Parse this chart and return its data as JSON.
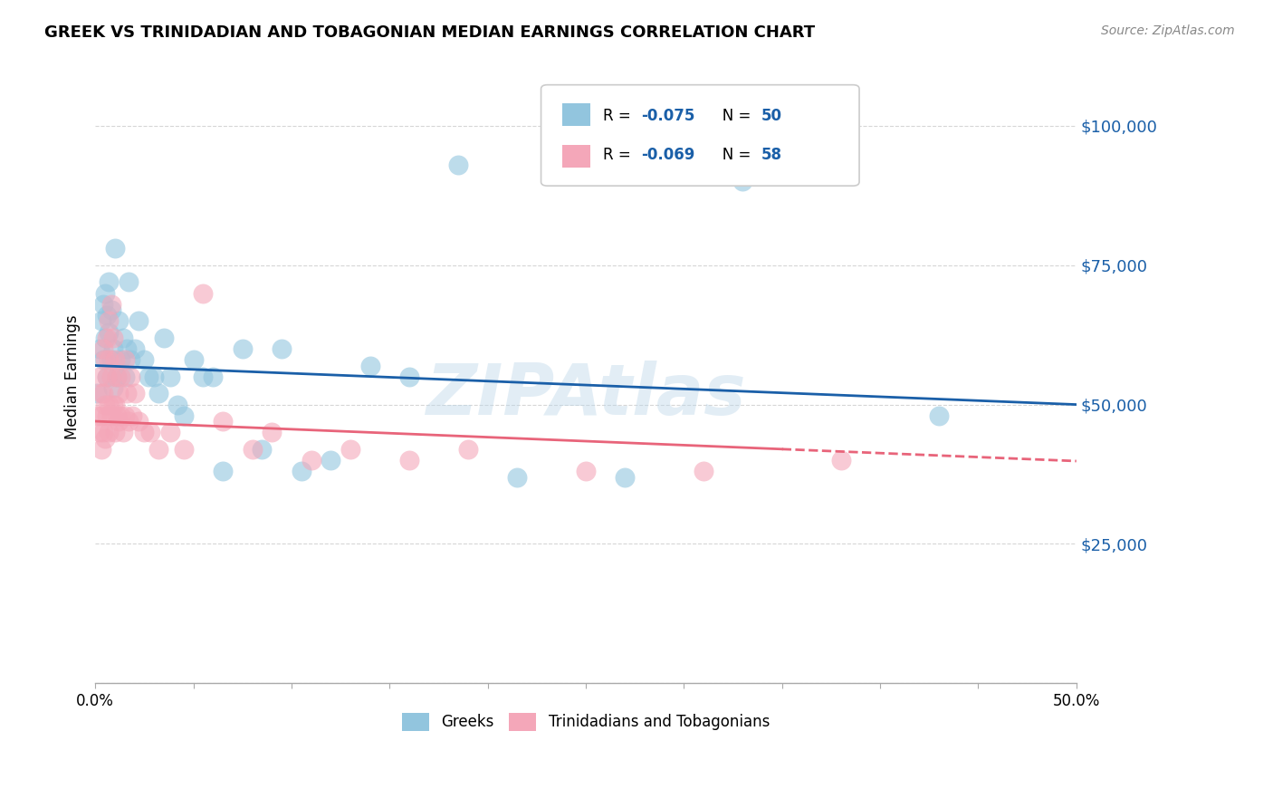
{
  "title": "GREEK VS TRINIDADIAN AND TOBAGONIAN MEDIAN EARNINGS CORRELATION CHART",
  "source": "Source: ZipAtlas.com",
  "ylabel": "Median Earnings",
  "yticks": [
    0,
    25000,
    50000,
    75000,
    100000
  ],
  "ytick_labels": [
    "",
    "$25,000",
    "$50,000",
    "$75,000",
    "$100,000"
  ],
  "xlim": [
    0.0,
    0.5
  ],
  "ylim": [
    0,
    110000
  ],
  "legend_r1": "-0.075",
  "legend_n1": "50",
  "legend_r2": "-0.069",
  "legend_n2": "58",
  "label_greeks": "Greeks",
  "label_trinidadians": "Trinidadians and Tobagonians",
  "color_blue": "#92c5de",
  "color_pink": "#f4a7b9",
  "color_blue_line": "#1a5fa8",
  "color_pink_line": "#e8647a",
  "watermark": "ZIPAtlas",
  "greeks_x": [
    0.001,
    0.002,
    0.003,
    0.004,
    0.004,
    0.005,
    0.005,
    0.006,
    0.006,
    0.007,
    0.007,
    0.008,
    0.008,
    0.009,
    0.009,
    0.01,
    0.011,
    0.012,
    0.013,
    0.014,
    0.015,
    0.016,
    0.017,
    0.018,
    0.02,
    0.022,
    0.025,
    0.027,
    0.03,
    0.032,
    0.035,
    0.038,
    0.042,
    0.045,
    0.05,
    0.055,
    0.06,
    0.065,
    0.075,
    0.085,
    0.095,
    0.105,
    0.12,
    0.14,
    0.16,
    0.185,
    0.215,
    0.27,
    0.33,
    0.43
  ],
  "greeks_y": [
    52000,
    60000,
    65000,
    58000,
    68000,
    62000,
    70000,
    66000,
    55000,
    63000,
    72000,
    58000,
    67000,
    53000,
    60000,
    78000,
    55000,
    65000,
    58000,
    62000,
    55000,
    60000,
    72000,
    58000,
    60000,
    65000,
    58000,
    55000,
    55000,
    52000,
    62000,
    55000,
    50000,
    48000,
    58000,
    55000,
    55000,
    38000,
    60000,
    42000,
    60000,
    38000,
    40000,
    57000,
    55000,
    93000,
    37000,
    37000,
    90000,
    48000
  ],
  "trinidadians_x": [
    0.001,
    0.002,
    0.002,
    0.003,
    0.003,
    0.003,
    0.004,
    0.004,
    0.004,
    0.005,
    0.005,
    0.005,
    0.006,
    0.006,
    0.006,
    0.007,
    0.007,
    0.007,
    0.007,
    0.008,
    0.008,
    0.008,
    0.009,
    0.009,
    0.01,
    0.01,
    0.01,
    0.011,
    0.011,
    0.012,
    0.012,
    0.013,
    0.013,
    0.014,
    0.015,
    0.015,
    0.016,
    0.017,
    0.018,
    0.019,
    0.02,
    0.022,
    0.025,
    0.028,
    0.032,
    0.038,
    0.045,
    0.055,
    0.065,
    0.08,
    0.09,
    0.11,
    0.13,
    0.16,
    0.19,
    0.25,
    0.31,
    0.38
  ],
  "trinidadians_y": [
    48000,
    55000,
    45000,
    52000,
    48000,
    42000,
    60000,
    52000,
    45000,
    58000,
    50000,
    44000,
    62000,
    55000,
    48000,
    65000,
    58000,
    50000,
    45000,
    68000,
    55000,
    48000,
    62000,
    50000,
    58000,
    50000,
    45000,
    55000,
    48000,
    52000,
    47000,
    55000,
    48000,
    45000,
    58000,
    48000,
    52000,
    47000,
    55000,
    48000,
    52000,
    47000,
    45000,
    45000,
    42000,
    45000,
    42000,
    70000,
    47000,
    42000,
    45000,
    40000,
    42000,
    40000,
    42000,
    38000,
    38000,
    40000
  ]
}
